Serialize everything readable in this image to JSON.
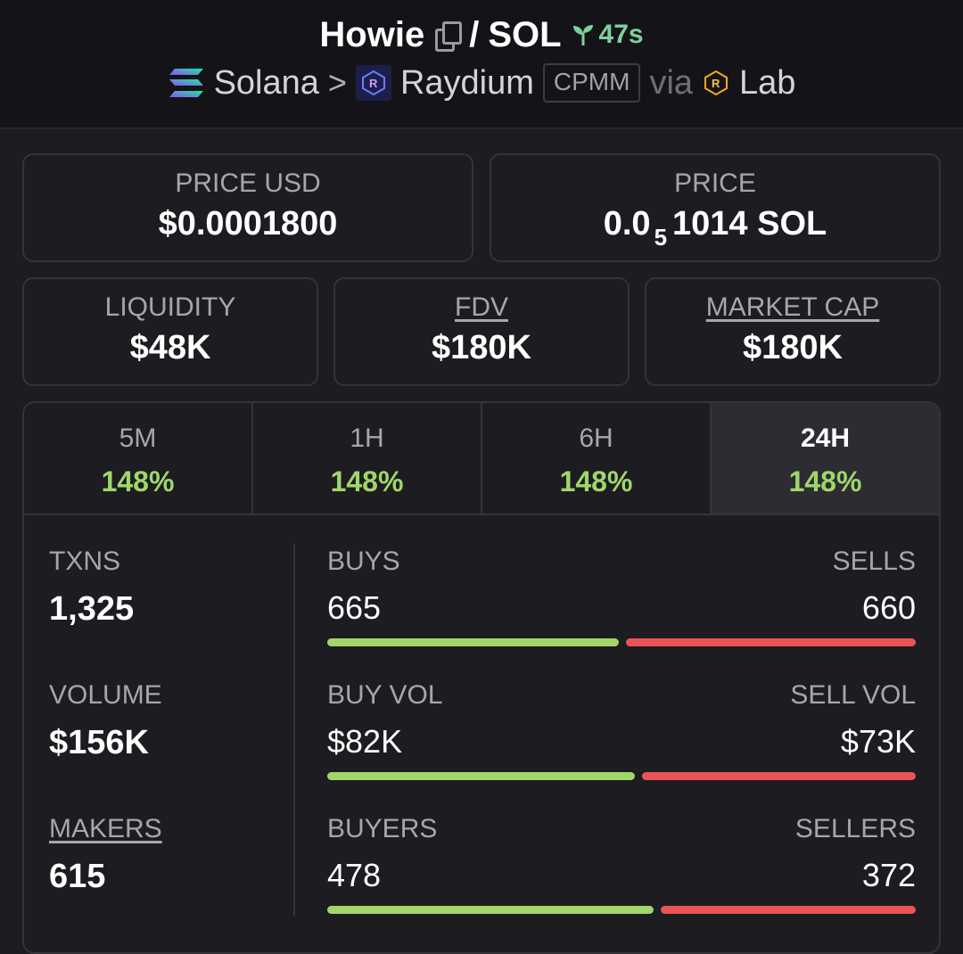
{
  "header": {
    "token": "Howie",
    "pair_sep": "/",
    "quote": "SOL",
    "age": "47s",
    "chain": "Solana",
    "arrow": ">",
    "dex": "Raydium",
    "pool_type": "CPMM",
    "via": "via",
    "launchpad": "Lab"
  },
  "prices": {
    "usd_label": "PRICE USD",
    "usd_value": "$0.0001800",
    "native_label": "PRICE",
    "native_prefix": "0.0",
    "native_zeros": "5",
    "native_digits": "1014 SOL"
  },
  "metrics_top": {
    "liquidity_label": "LIQUIDITY",
    "liquidity_value": "$48K",
    "fdv_label": "FDV",
    "fdv_value": "$180K",
    "mcap_label": "MARKET CAP",
    "mcap_value": "$180K"
  },
  "tabs": [
    {
      "label": "5M",
      "value": "148%"
    },
    {
      "label": "1H",
      "value": "148%"
    },
    {
      "label": "6H",
      "value": "148%"
    },
    {
      "label": "24H",
      "value": "148%"
    }
  ],
  "stats": {
    "txns_label": "TXNS",
    "txns_value": "1,325",
    "volume_label": "VOLUME",
    "volume_value": "$156K",
    "makers_label": "MAKERS",
    "makers_value": "615",
    "buys_label": "BUYS",
    "buys_value": "665",
    "sells_label": "SELLS",
    "sells_value": "660",
    "buys_fraction": 0.502,
    "buyvol_label": "BUY VOL",
    "buyvol_value": "$82K",
    "sellvol_label": "SELL VOL",
    "sellvol_value": "$73K",
    "buyvol_fraction": 0.529,
    "buyers_label": "BUYERS",
    "buyers_value": "478",
    "sellers_label": "SELLERS",
    "sellers_value": "372",
    "buyers_fraction": 0.562
  },
  "colors": {
    "positive": "#a0d66a",
    "negative": "#ea5454",
    "age": "#7fd0a0"
  },
  "icons": [
    "copy-icon",
    "sprout-icon",
    "solana-icon",
    "raydium-icon",
    "lab-icon"
  ]
}
